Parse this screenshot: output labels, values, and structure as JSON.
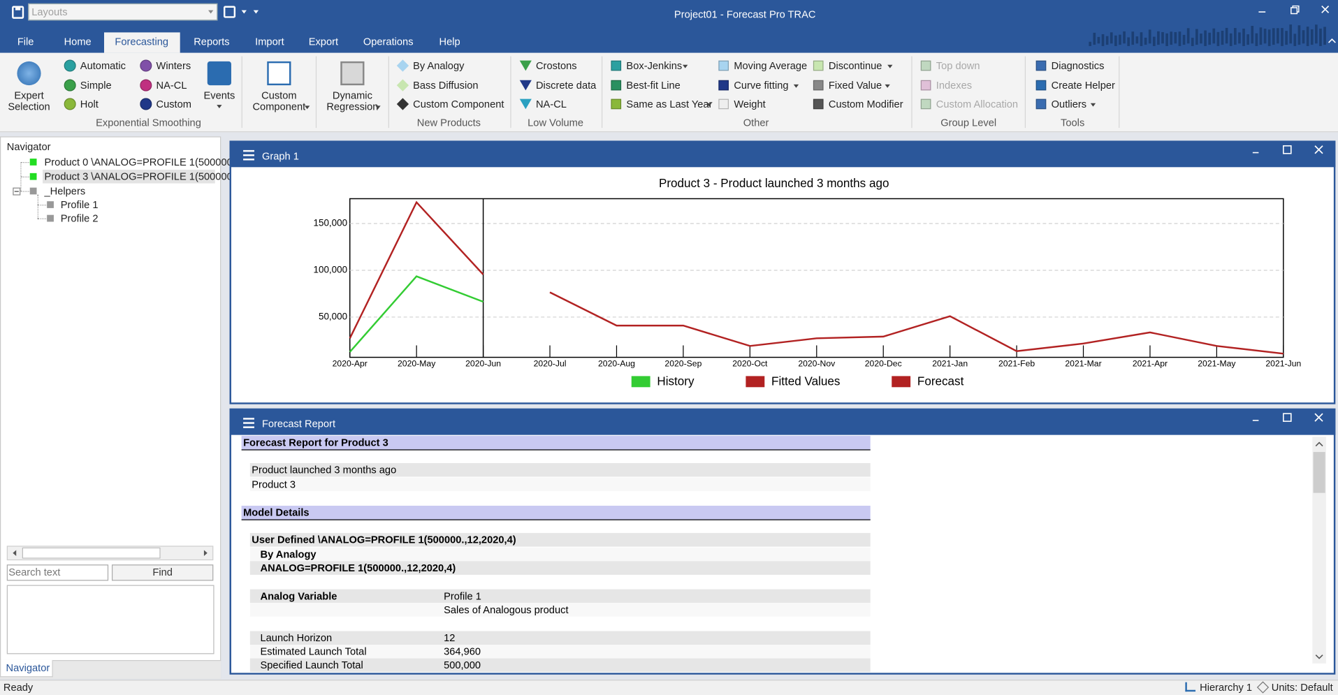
{
  "title_bar": {
    "layouts": "Layouts",
    "title": "Project01 - Forecast Pro TRAC"
  },
  "menu": [
    "File",
    "Home",
    "Forecasting",
    "Reports",
    "Import",
    "Export",
    "Operations",
    "Help"
  ],
  "ribbon": {
    "large_buttons": [
      [
        "Expert",
        "Selection"
      ],
      [
        "Events"
      ],
      [
        "Custom",
        "Component"
      ],
      [
        "Dynamic",
        "Regression"
      ]
    ],
    "items": [
      "Automatic",
      "Simple",
      "Holt",
      "Winters",
      "NA-CL",
      "Custom",
      "By Analogy",
      "Bass Diffusion",
      "Custom Component",
      "Crostons",
      "Discrete data",
      "NA-CL",
      "Box-Jenkins",
      "Best-fit Line",
      "Same as Last Year",
      "Moving Average",
      "Curve fitting",
      "Weight",
      "Discontinue",
      "Fixed Value",
      "Custom Modifier",
      "Top down",
      "Indexes",
      "Custom Allocation",
      "Diagnostics",
      "Create Helper",
      "Outliers"
    ],
    "groups": [
      "Exponential Smoothing",
      "New Products",
      "Low Volume",
      "Other",
      "Group Level",
      "Tools"
    ]
  },
  "navigator": {
    "title": "Navigator",
    "tree": [
      "Product 0 \\ANALOG=PROFILE 1(500000",
      "Product 3 \\ANALOG=PROFILE 1(500000",
      "_Helpers",
      "Profile 1",
      "Profile 2"
    ],
    "search_placeholder": "Search text",
    "find": "Find",
    "tab": "Navigator"
  },
  "graph_window": {
    "title": "Graph 1"
  },
  "chart_data": {
    "type": "line",
    "title": "Product 3 - Product launched 3 months ago",
    "x": [
      "2020-Apr",
      "2020-May",
      "2020-Jun",
      "2020-Jul",
      "2020-Aug",
      "2020-Sep",
      "2020-Oct",
      "2020-Nov",
      "2020-Dec",
      "2021-Jan",
      "2021-Feb",
      "2021-Mar",
      "2021-Apr",
      "2021-May",
      "2021-Jun"
    ],
    "series": [
      {
        "name": "History",
        "color": "#33cc33",
        "values": [
          12700,
          93600,
          66400,
          null,
          null,
          null,
          null,
          null,
          null,
          null,
          null,
          null,
          null,
          null,
          null
        ]
      },
      {
        "name": "Fitted Values",
        "color": "#b22222",
        "values": [
          27300,
          172700,
          95500,
          null,
          null,
          null,
          null,
          null,
          null,
          null,
          null,
          null,
          null,
          null,
          null
        ]
      },
      {
        "name": "Forecast",
        "color": "#b22222",
        "values": [
          null,
          null,
          null,
          76400,
          40900,
          40900,
          19100,
          27300,
          29100,
          50900,
          13600,
          21800,
          33600,
          19100,
          10900
        ]
      }
    ],
    "ylim": [
      7000,
      176500
    ],
    "yticks": [
      {
        "value": 50000,
        "label": "50,000"
      },
      {
        "value": 100000,
        "label": "100,000"
      },
      {
        "value": 150000,
        "label": "150,000"
      }
    ],
    "grid": true,
    "legend": "bottom"
  },
  "report_window": {
    "title": "Forecast Report",
    "rows": [
      [
        "Forecast Report for Product 3"
      ],
      [
        "Product launched 3 months ago"
      ],
      [
        "Product 3"
      ],
      [
        "Model Details"
      ],
      [
        "User Defined \\ANALOG=PROFILE 1(500000.,12,2020,4)"
      ],
      [
        "By Analogy"
      ],
      [
        "ANALOG=PROFILE 1(500000.,12,2020,4)"
      ],
      [
        "Analog Variable",
        "Profile 1"
      ],
      [
        null,
        "Sales of Analogous product"
      ],
      [
        "Launch Horizon",
        "12"
      ],
      [
        "Estimated Launch Total",
        "364,960"
      ],
      [
        "Specified Launch Total",
        "500,000"
      ]
    ]
  },
  "status_bar": {
    "ready": "Ready",
    "hierarchy": "Hierarchy 1",
    "units": "Units: Default"
  }
}
